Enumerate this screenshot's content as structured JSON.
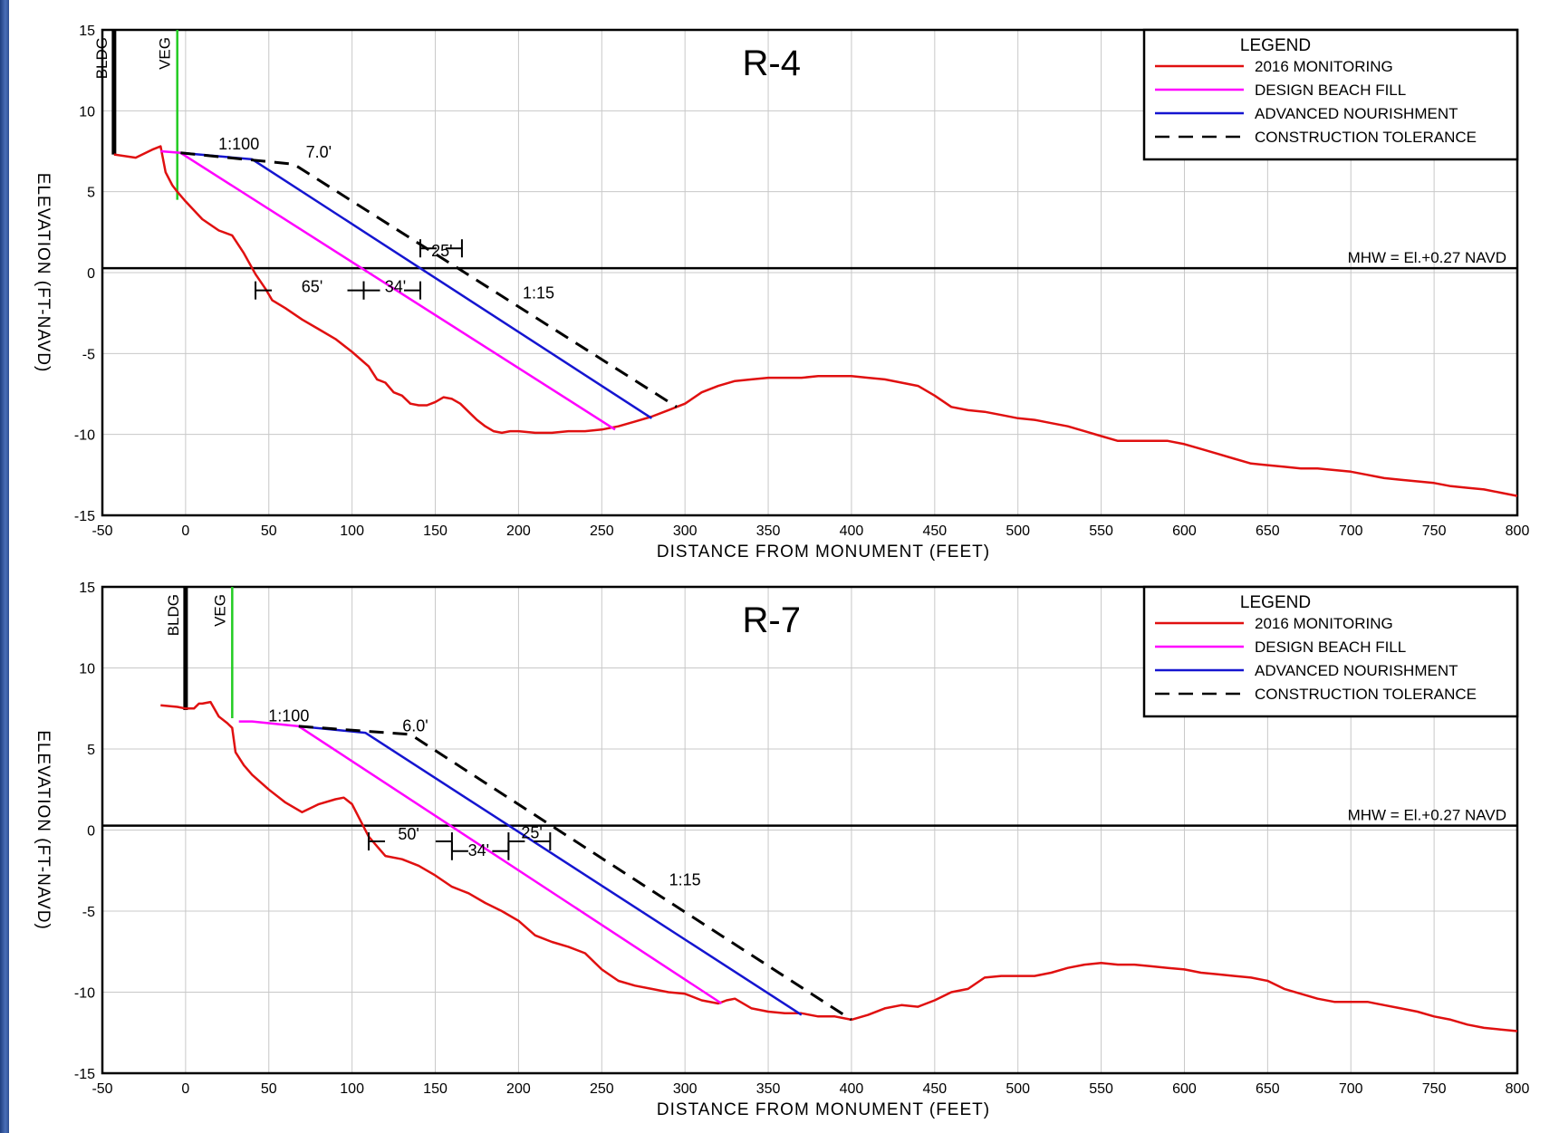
{
  "chart_data": [
    {
      "type": "line",
      "title": "R-4",
      "xlabel": "DISTANCE  FROM  MONUMENT  (FEET)",
      "ylabel": "ELEVATION (FT-NAVD)",
      "xlim": [
        -50,
        800
      ],
      "ylim": [
        -15,
        15
      ],
      "xticks": [
        -50,
        0,
        50,
        100,
        150,
        200,
        250,
        300,
        350,
        400,
        450,
        500,
        550,
        600,
        650,
        700,
        750,
        800
      ],
      "yticks": [
        15,
        10,
        5,
        0,
        -5,
        -10,
        -15
      ],
      "grid": true,
      "legend": {
        "title": "LEGEND",
        "placement": "top-right",
        "entries": [
          "2016 MONITORING",
          "DESIGN BEACH FILL",
          "ADVANCED NOURISHMENT",
          "CONSTRUCTION TOLERANCE"
        ]
      },
      "mhw_label": "MHW = El.+0.27 NAVD",
      "mhw_value": 0.27,
      "bldg": {
        "label": "BLDG",
        "x": -43,
        "y_top": 15,
        "y_bottom": 7.3
      },
      "veg": {
        "label": "VEG",
        "x": -5,
        "y_top": 15,
        "y_bottom": 4.5
      },
      "series": [
        {
          "name": "2016 MONITORING",
          "color": "#e01010",
          "x": [
            -43,
            -30,
            -20,
            -15,
            -12,
            -8,
            -5,
            0,
            10,
            20,
            28,
            35,
            42,
            48,
            52,
            60,
            70,
            80,
            90,
            100,
            110,
            115,
            120,
            125,
            130,
            135,
            140,
            145,
            150,
            155,
            160,
            165,
            170,
            175,
            180,
            185,
            190,
            195,
            200,
            210,
            220,
            230,
            240,
            250,
            260,
            270,
            280,
            290,
            300,
            310,
            320,
            330,
            340,
            350,
            360,
            370,
            380,
            390,
            400,
            410,
            420,
            430,
            440,
            450,
            460,
            470,
            480,
            490,
            500,
            510,
            520,
            530,
            540,
            550,
            560,
            570,
            580,
            590,
            600,
            610,
            620,
            630,
            640,
            650,
            660,
            670,
            680,
            690,
            700,
            710,
            720,
            730,
            740,
            750,
            760,
            770,
            780,
            790,
            800
          ],
          "y": [
            7.3,
            7.1,
            7.6,
            7.8,
            6.2,
            5.4,
            5.0,
            4.4,
            3.3,
            2.6,
            2.3,
            1.2,
            -0.1,
            -1.0,
            -1.7,
            -2.2,
            -2.9,
            -3.5,
            -4.1,
            -4.9,
            -5.8,
            -6.6,
            -6.8,
            -7.4,
            -7.6,
            -8.1,
            -8.2,
            -8.2,
            -8.0,
            -7.7,
            -7.8,
            -8.1,
            -8.6,
            -9.1,
            -9.5,
            -9.8,
            -9.9,
            -9.8,
            -9.8,
            -9.9,
            -9.9,
            -9.8,
            -9.8,
            -9.7,
            -9.5,
            -9.2,
            -8.9,
            -8.5,
            -8.1,
            -7.4,
            -7.0,
            -6.7,
            -6.6,
            -6.5,
            -6.5,
            -6.5,
            -6.4,
            -6.4,
            -6.4,
            -6.5,
            -6.6,
            -6.8,
            -7.0,
            -7.6,
            -8.3,
            -8.5,
            -8.6,
            -8.8,
            -9.0,
            -9.1,
            -9.3,
            -9.5,
            -9.8,
            -10.1,
            -10.4,
            -10.4,
            -10.4,
            -10.4,
            -10.6,
            -10.9,
            -11.2,
            -11.5,
            -11.8,
            -11.9,
            -12.0,
            -12.1,
            -12.1,
            -12.2,
            -12.3,
            -12.5,
            -12.7,
            -12.8,
            -12.9,
            -13.0,
            -13.2,
            -13.3,
            -13.4,
            -13.6,
            -13.8
          ]
        },
        {
          "name": "DESIGN BEACH FILL",
          "color": "#ff00ff",
          "x": [
            -15,
            -3,
            258
          ],
          "y": [
            7.5,
            7.4,
            -9.7
          ]
        },
        {
          "name": "ADVANCED NOURISHMENT",
          "color": "#1515d0",
          "x": [
            -3,
            40,
            280
          ],
          "y": [
            7.4,
            7.0,
            -9.0
          ]
        },
        {
          "name": "CONSTRUCTION TOLERANCE",
          "color": "#000000",
          "x": [
            -3,
            65,
            295
          ],
          "y": [
            7.4,
            6.7,
            -8.3
          ]
        }
      ],
      "annotations": [
        {
          "text": "1:100",
          "x": 32,
          "y": 7.6
        },
        {
          "text": "7.0'",
          "x": 80,
          "y": 7.1
        },
        {
          "text": "25'",
          "x": 154,
          "y": 1.0
        },
        {
          "text": "65'",
          "x": 76,
          "y": -1.2
        },
        {
          "text": "34'",
          "x": 126,
          "y": -1.2
        },
        {
          "text": "1:15",
          "x": 212,
          "y": -1.6
        }
      ],
      "dimension_lines": [
        {
          "x1": 42,
          "x2": 107,
          "y": -1.1,
          "label": "65'"
        },
        {
          "x1": 107,
          "x2": 141,
          "y": -1.1,
          "label": "34'"
        },
        {
          "x1": 141,
          "x2": 166,
          "y": 1.5,
          "label": "25'"
        }
      ]
    },
    {
      "type": "line",
      "title": "R-7",
      "xlabel": "DISTANCE  FROM  MONUMENT  (FEET)",
      "ylabel": "ELEVATION (FT-NAVD)",
      "xlim": [
        -50,
        800
      ],
      "ylim": [
        -15,
        15
      ],
      "xticks": [
        -50,
        0,
        50,
        100,
        150,
        200,
        250,
        300,
        350,
        400,
        450,
        500,
        550,
        600,
        650,
        700,
        750,
        800
      ],
      "yticks": [
        15,
        10,
        5,
        0,
        -5,
        -10,
        -15
      ],
      "grid": true,
      "legend": {
        "title": "LEGEND",
        "placement": "top-right",
        "entries": [
          "2016 MONITORING",
          "DESIGN BEACH FILL",
          "ADVANCED NOURISHMENT",
          "CONSTRUCTION TOLERANCE"
        ]
      },
      "mhw_label": "MHW = El.+0.27 NAVD",
      "mhw_value": 0.27,
      "bldg": {
        "label": "BLDG",
        "x": 0,
        "y_top": 15,
        "y_bottom": 7.4
      },
      "veg": {
        "label": "VEG",
        "x": 28,
        "y_top": 15,
        "y_bottom": 6.9
      },
      "series": [
        {
          "name": "2016 MONITORING",
          "color": "#e01010",
          "x": [
            -15,
            -5,
            0,
            5,
            8,
            10,
            15,
            20,
            25,
            28,
            30,
            35,
            40,
            50,
            60,
            70,
            80,
            90,
            95,
            100,
            105,
            110,
            115,
            120,
            130,
            140,
            150,
            160,
            170,
            180,
            190,
            200,
            210,
            220,
            230,
            240,
            250,
            260,
            270,
            280,
            290,
            300,
            310,
            320,
            325,
            330,
            340,
            350,
            360,
            370,
            380,
            390,
            400,
            410,
            420,
            430,
            440,
            450,
            460,
            470,
            480,
            490,
            500,
            510,
            520,
            530,
            540,
            550,
            560,
            570,
            580,
            590,
            600,
            610,
            620,
            630,
            640,
            650,
            660,
            670,
            680,
            690,
            700,
            710,
            720,
            730,
            740,
            750,
            760,
            770,
            780,
            790,
            800
          ],
          "y": [
            7.7,
            7.6,
            7.5,
            7.5,
            7.8,
            7.8,
            7.9,
            7.0,
            6.6,
            6.3,
            4.8,
            4.0,
            3.4,
            2.5,
            1.7,
            1.1,
            1.6,
            1.9,
            2.0,
            1.6,
            0.6,
            -0.4,
            -1.0,
            -1.6,
            -1.8,
            -2.2,
            -2.8,
            -3.5,
            -3.9,
            -4.5,
            -5.0,
            -5.6,
            -6.5,
            -6.9,
            -7.2,
            -7.6,
            -8.6,
            -9.3,
            -9.6,
            -9.8,
            -10.0,
            -10.1,
            -10.5,
            -10.7,
            -10.5,
            -10.4,
            -11.0,
            -11.2,
            -11.3,
            -11.3,
            -11.5,
            -11.5,
            -11.7,
            -11.4,
            -11.0,
            -10.8,
            -10.9,
            -10.5,
            -10.0,
            -9.8,
            -9.1,
            -9.0,
            -9.0,
            -9.0,
            -8.8,
            -8.5,
            -8.3,
            -8.2,
            -8.3,
            -8.3,
            -8.4,
            -8.5,
            -8.6,
            -8.8,
            -8.9,
            -9.0,
            -9.1,
            -9.3,
            -9.8,
            -10.1,
            -10.4,
            -10.6,
            -10.6,
            -10.6,
            -10.8,
            -11.0,
            -11.2,
            -11.5,
            -11.7,
            -12.0,
            -12.2,
            -12.3,
            -12.4
          ]
        },
        {
          "name": "DESIGN BEACH FILL",
          "color": "#ff00ff",
          "x": [
            32,
            40,
            68,
            322
          ],
          "y": [
            6.7,
            6.7,
            6.4,
            -10.7
          ]
        },
        {
          "name": "ADVANCED NOURISHMENT",
          "color": "#1515d0",
          "x": [
            68,
            108,
            370
          ],
          "y": [
            6.4,
            6.0,
            -11.4
          ]
        },
        {
          "name": "CONSTRUCTION TOLERANCE",
          "color": "#000000",
          "x": [
            68,
            135,
            400
          ],
          "y": [
            6.4,
            5.9,
            -11.7
          ]
        }
      ],
      "annotations": [
        {
          "text": "1:100",
          "x": 62,
          "y": 6.7
        },
        {
          "text": "6.0'",
          "x": 138,
          "y": 6.1
        },
        {
          "text": "50'",
          "x": 134,
          "y": -0.6
        },
        {
          "text": "34'",
          "x": 176,
          "y": -1.6
        },
        {
          "text": "25'",
          "x": 208,
          "y": -0.5
        },
        {
          "text": "1:15",
          "x": 300,
          "y": -3.4
        }
      ],
      "dimension_lines": [
        {
          "x1": 110,
          "x2": 160,
          "y": -0.7,
          "label": "50'"
        },
        {
          "x1": 160,
          "x2": 194,
          "y": -1.3,
          "label": "34'"
        },
        {
          "x1": 194,
          "x2": 219,
          "y": -0.7,
          "label": "25'"
        }
      ]
    }
  ]
}
